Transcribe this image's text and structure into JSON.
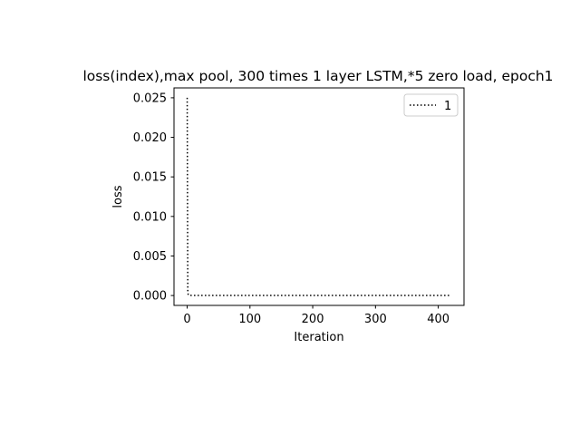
{
  "chart_data": {
    "type": "line",
    "title": "loss(index),max pool, 300 times 1 layer LSTM,*5 zero load, epoch1",
    "xlabel": "Iteration",
    "ylabel": "loss",
    "xlim": [
      -21,
      441
    ],
    "ylim": [
      -0.00125,
      0.02625
    ],
    "xticks": [
      0,
      100,
      200,
      300,
      400
    ],
    "xtick_labels": [
      "0",
      "100",
      "200",
      "300",
      "400"
    ],
    "yticks": [
      0.0,
      0.005,
      0.01,
      0.015,
      0.02,
      0.025
    ],
    "ytick_labels": [
      "0.000",
      "0.005",
      "0.010",
      "0.015",
      "0.020",
      "0.025"
    ],
    "grid": false,
    "legend_position": "upper right",
    "series": [
      {
        "name": "1",
        "color": "#000000",
        "line_style": "dotted",
        "x": [
          0,
          1,
          2,
          5,
          10,
          50,
          100,
          150,
          200,
          250,
          300,
          350,
          400,
          420
        ],
        "y": [
          0.025,
          0.0003,
          5e-05,
          2e-05,
          1e-05,
          1e-05,
          1e-05,
          1e-05,
          1e-05,
          1e-05,
          1e-05,
          1e-05,
          1e-05,
          1e-05
        ]
      }
    ]
  }
}
